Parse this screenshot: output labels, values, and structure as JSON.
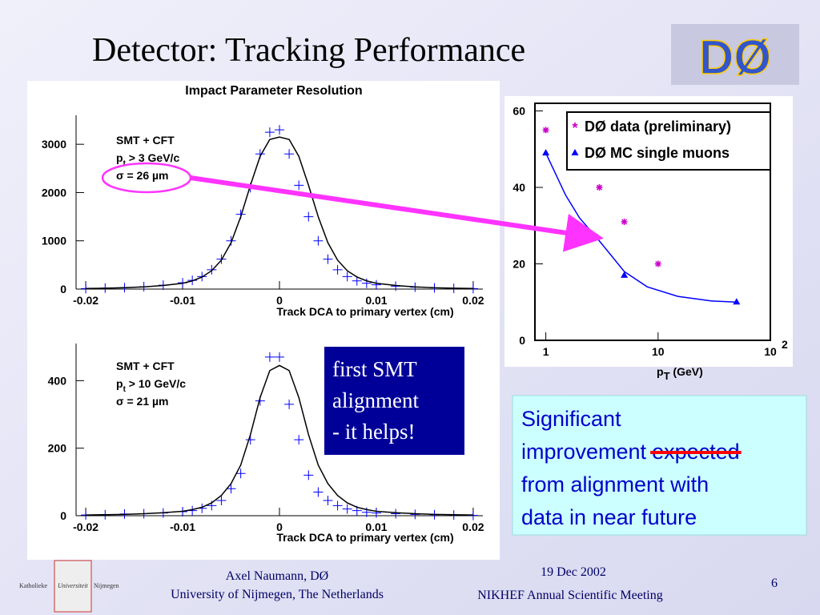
{
  "title": "Detector: Tracking Performance",
  "logo": "DØ",
  "chart_data": [
    {
      "type": "scatter",
      "title": "Impact Parameter Resolution",
      "x_label": "Track DCA to primary vertex (cm)",
      "annotations": {
        "line1": "SMT + CFT",
        "line2_base": "p",
        "line2_sub": "t",
        "line2_rest": " > 3 GeV/c",
        "line3": "σ = 26 µm"
      },
      "xlim": [
        -0.021,
        0.021
      ],
      "ylim": [
        0,
        3600
      ],
      "xticks": [
        -0.02,
        -0.01,
        0,
        0.01,
        0.02
      ],
      "yticks": [
        0,
        1000,
        2000,
        3000
      ],
      "x": [
        -0.02,
        -0.018,
        -0.016,
        -0.014,
        -0.012,
        -0.01,
        -0.009,
        -0.008,
        -0.007,
        -0.006,
        -0.005,
        -0.004,
        -0.003,
        -0.002,
        -0.001,
        0,
        0.001,
        0.002,
        0.003,
        0.004,
        0.005,
        0.006,
        0.007,
        0.008,
        0.009,
        0.01,
        0.012,
        0.014,
        0.016,
        0.018,
        0.02
      ],
      "series": [
        {
          "marker": "cross",
          "color": "#0000ff",
          "values": [
            10,
            20,
            30,
            50,
            80,
            130,
            180,
            260,
            400,
            620,
            1000,
            1550,
            2100,
            2800,
            3250,
            3300,
            2800,
            2150,
            1500,
            1000,
            620,
            400,
            260,
            170,
            120,
            90,
            60,
            40,
            25,
            15,
            10
          ]
        },
        {
          "marker": "line",
          "color": "#000000",
          "values": [
            12,
            18,
            28,
            45,
            75,
            120,
            170,
            250,
            380,
            600,
            960,
            1500,
            2150,
            2750,
            3100,
            3150,
            3100,
            2750,
            2150,
            1500,
            960,
            600,
            380,
            250,
            170,
            120,
            75,
            45,
            28,
            18,
            12
          ]
        }
      ]
    },
    {
      "type": "scatter",
      "x_label": "Track DCA to primary vertex (cm)",
      "annotations": {
        "line1": "SMT + CFT",
        "line2_base": "p",
        "line2_sub": "t",
        "line2_rest": " > 10 GeV/c",
        "line3": "σ = 21 µm"
      },
      "xlim": [
        -0.021,
        0.021
      ],
      "ylim": [
        0,
        510
      ],
      "xticks": [
        -0.02,
        -0.01,
        0,
        0.01,
        0.02
      ],
      "yticks": [
        0,
        200,
        400
      ],
      "x": [
        -0.02,
        -0.018,
        -0.016,
        -0.014,
        -0.012,
        -0.01,
        -0.009,
        -0.008,
        -0.007,
        -0.006,
        -0.005,
        -0.004,
        -0.003,
        -0.002,
        -0.001,
        0,
        0.001,
        0.002,
        0.003,
        0.004,
        0.005,
        0.006,
        0.007,
        0.008,
        0.009,
        0.01,
        0.012,
        0.014,
        0.016,
        0.018,
        0.02
      ],
      "series": [
        {
          "marker": "cross",
          "color": "#0000ff",
          "values": [
            2,
            3,
            5,
            6,
            8,
            12,
            15,
            22,
            30,
            45,
            80,
            125,
            225,
            340,
            470,
            470,
            330,
            225,
            120,
            70,
            45,
            30,
            20,
            15,
            10,
            8,
            6,
            4,
            3,
            2,
            1
          ]
        },
        {
          "marker": "line",
          "color": "#000000",
          "values": [
            2,
            3,
            4,
            6,
            9,
            13,
            18,
            25,
            38,
            60,
            95,
            150,
            240,
            350,
            430,
            445,
            430,
            350,
            240,
            150,
            95,
            60,
            38,
            25,
            18,
            13,
            9,
            6,
            4,
            3,
            2
          ]
        }
      ]
    },
    {
      "type": "scatter",
      "xlog": true,
      "x_label_base": "p",
      "x_label_sub": "T",
      "x_label_rest": " (GeV)",
      "xlim": [
        0.8,
        100
      ],
      "ylim": [
        0,
        62
      ],
      "xticks": [
        1,
        10,
        {
          "value": 100,
          "label": "10",
          "exponent": "2"
        }
      ],
      "yticks": [
        0,
        20,
        40,
        60
      ],
      "series": [
        {
          "name": "DØ data (preliminary)",
          "marker": "star",
          "color": "#cc00cc",
          "x": [
            1,
            3,
            5,
            10
          ],
          "values": [
            55,
            40,
            31,
            20
          ]
        },
        {
          "name": "DØ MC single muons",
          "marker": "triangle",
          "color": "#0000ff",
          "x": [
            1,
            5,
            50
          ],
          "values": [
            49,
            17,
            10
          ]
        },
        {
          "marker": "line",
          "color": "#0000ff",
          "x": [
            1,
            1.5,
            2,
            3,
            5,
            8,
            15,
            30,
            50
          ],
          "values": [
            49,
            38,
            32,
            26,
            18,
            14,
            11.5,
            10.3,
            10
          ]
        }
      ]
    }
  ],
  "box_left": [
    "first SMT",
    "alignment",
    "- it helps!"
  ],
  "box_right": {
    "line1": "Significant",
    "line2": "improvement",
    "struck": "expected",
    "line3": "from alignment with",
    "line4": "data in near future"
  },
  "footer": {
    "author": "Axel Naumann, DØ",
    "affiliation": "University of Nijmegen, The Netherlands",
    "date": "19 Dec 2002",
    "meeting": "NIKHEF Annual Scientific Meeting",
    "page": "6",
    "logo_left": "Katholieke",
    "logo_mid": "Universiteit",
    "logo_right": "Nijmegen"
  }
}
